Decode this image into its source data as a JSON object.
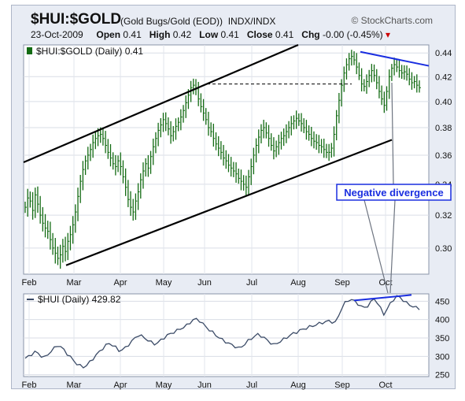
{
  "header": {
    "symbol": "$HUI:$GOLD",
    "description": "(Gold Bugs/Gold (EOD))",
    "exchange": "INDX/INDX",
    "brand": "© StockCharts.com",
    "date": "23-Oct-2009",
    "open_label": "Open",
    "open_value": "0.41",
    "high_label": "High",
    "high_value": "0.42",
    "low_label": "Low",
    "low_value": "0.41",
    "close_label": "Close",
    "close_value": "0.41",
    "chg_label": "Chg",
    "chg_value": "-0.00 (-0.45%)"
  },
  "colors": {
    "price_bars": "#136b13",
    "line_series": "#3a4a66",
    "annotation_blue": "#1a2ee0",
    "channel": "#000000"
  },
  "chart_data": [
    {
      "type": "bar",
      "title": "$HUI:$GOLD (Daily) 0.41",
      "series": [
        {
          "name": "$HUI:$GOLD (Daily)",
          "last": "0.41"
        }
      ],
      "x_labels": [
        "Feb",
        "Mar",
        "Apr",
        "May",
        "Jun",
        "Jul",
        "Aug",
        "Sep",
        "Oct"
      ],
      "y_ticks": [
        "0.30",
        "0.32",
        "0.34",
        "0.36",
        "0.38",
        "0.40",
        "0.42",
        "0.44"
      ],
      "ylim": [
        0.285,
        0.447
      ],
      "scale": "log",
      "grid": true,
      "closes": [
        0.325,
        0.331,
        0.329,
        0.323,
        0.333,
        0.327,
        0.32,
        0.315,
        0.312,
        0.31,
        0.305,
        0.3,
        0.297,
        0.294,
        0.296,
        0.301,
        0.298,
        0.304,
        0.308,
        0.314,
        0.322,
        0.332,
        0.342,
        0.35,
        0.356,
        0.36,
        0.364,
        0.369,
        0.372,
        0.374,
        0.375,
        0.372,
        0.367,
        0.362,
        0.358,
        0.354,
        0.352,
        0.356,
        0.352,
        0.345,
        0.338,
        0.33,
        0.325,
        0.322,
        0.329,
        0.335,
        0.343,
        0.349,
        0.354,
        0.351,
        0.359,
        0.366,
        0.372,
        0.378,
        0.382,
        0.386,
        0.383,
        0.379,
        0.374,
        0.377,
        0.381,
        0.384,
        0.388,
        0.393,
        0.399,
        0.405,
        0.411,
        0.413,
        0.41,
        0.402,
        0.396,
        0.391,
        0.386,
        0.38,
        0.377,
        0.372,
        0.368,
        0.365,
        0.362,
        0.358,
        0.356,
        0.353,
        0.351,
        0.349,
        0.347,
        0.344,
        0.342,
        0.34,
        0.338,
        0.345,
        0.352,
        0.36,
        0.367,
        0.373,
        0.378,
        0.38,
        0.376,
        0.372,
        0.367,
        0.363,
        0.366,
        0.369,
        0.372,
        0.374,
        0.377,
        0.38,
        0.383,
        0.385,
        0.387,
        0.385,
        0.383,
        0.38,
        0.377,
        0.375,
        0.372,
        0.37,
        0.369,
        0.367,
        0.366,
        0.364,
        0.362,
        0.362,
        0.365,
        0.375,
        0.389,
        0.401,
        0.413,
        0.423,
        0.43,
        0.435,
        0.437,
        0.434,
        0.428,
        0.421,
        0.414,
        0.412,
        0.416,
        0.421,
        0.425,
        0.421,
        0.415,
        0.408,
        0.402,
        0.397,
        0.408,
        0.42,
        0.427,
        0.43,
        0.428,
        0.425,
        0.423,
        0.424,
        0.422,
        0.418,
        0.415,
        0.416,
        0.413,
        0.411
      ],
      "annotations": {
        "divergence_label": "Negative divergence",
        "resistance_level": 0.414,
        "channel_upper": {
          "start": [
            "Feb",
            0.355
          ],
          "end": [
            "Aug",
            0.447
          ]
        },
        "channel_lower": {
          "start": [
            "Mar",
            0.29
          ],
          "end": [
            "Oct",
            0.371
          ]
        },
        "top_trend": {
          "start": [
            "Sep",
            0.441
          ],
          "end": [
            "Oct",
            0.429
          ]
        }
      }
    },
    {
      "type": "line",
      "title": "$HUI (Daily) 429.82",
      "series": [
        {
          "name": "$HUI (Daily)",
          "last": "429.82"
        }
      ],
      "x_labels": [
        "Feb",
        "Mar",
        "Apr",
        "May",
        "Jun",
        "Jul",
        "Aug",
        "Sep",
        "Oct"
      ],
      "y_ticks": [
        "250",
        "300",
        "350",
        "400",
        "450"
      ],
      "ylim": [
        245,
        470
      ],
      "grid": true,
      "values": [
        295,
        299,
        306,
        312,
        308,
        301,
        297,
        305,
        314,
        322,
        330,
        326,
        317,
        307,
        298,
        288,
        280,
        274,
        271,
        276,
        284,
        294,
        304,
        313,
        322,
        330,
        335,
        331,
        324,
        316,
        318,
        323,
        332,
        341,
        350,
        358,
        355,
        350,
        344,
        338,
        334,
        337,
        344,
        351,
        357,
        362,
        366,
        370,
        375,
        379,
        384,
        392,
        399,
        401,
        397,
        388,
        380,
        372,
        365,
        358,
        351,
        345,
        340,
        335,
        331,
        327,
        322,
        326,
        334,
        342,
        349,
        355,
        359,
        356,
        350,
        343,
        337,
        331,
        336,
        341,
        346,
        352,
        357,
        362,
        366,
        370,
        374,
        377,
        380,
        383,
        386,
        389,
        392,
        394,
        396,
        394,
        392,
        410,
        432,
        445,
        452,
        455,
        449,
        443,
        436,
        432,
        438,
        447,
        457,
        446,
        430,
        415,
        428,
        443,
        455,
        463,
        460,
        453,
        445,
        440,
        436,
        432,
        430
      ]
    }
  ]
}
